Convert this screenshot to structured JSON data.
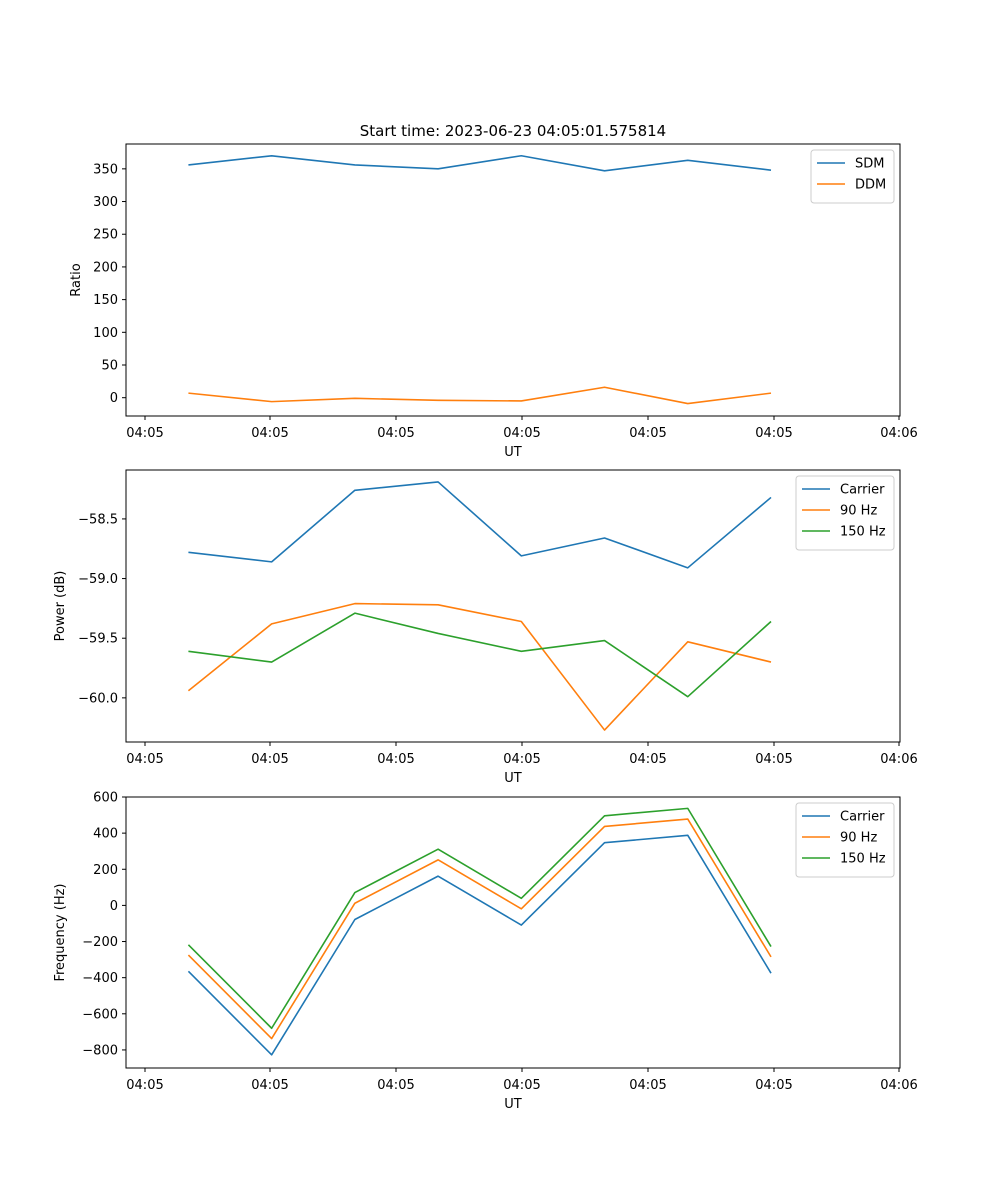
{
  "figure": {
    "title": "Start time: 2023-06-23 04:05:01.575814"
  },
  "chart_data": [
    {
      "type": "line",
      "title": "Start time: 2023-06-23 04:05:01.575814",
      "xlabel": "UT",
      "ylabel": "Ratio",
      "x_ticks": [
        "04:05",
        "04:05",
        "04:05",
        "04:05",
        "04:05",
        "04:05",
        "04:06"
      ],
      "x_points": [
        1,
        2,
        3,
        4,
        5,
        6,
        7,
        8
      ],
      "xlim": [
        0.25,
        9.55
      ],
      "ylim": [
        -28,
        388
      ],
      "y_ticks": [
        0,
        50,
        100,
        150,
        200,
        250,
        300,
        350
      ],
      "legend": "top-right",
      "grid": false,
      "series": [
        {
          "name": "SDM",
          "color": "#1f77b4",
          "values": [
            356,
            370,
            356,
            350,
            370,
            347,
            363,
            348
          ]
        },
        {
          "name": "DDM",
          "color": "#ff7f0e",
          "values": [
            7,
            -6,
            -1,
            -4,
            -5,
            16,
            -9,
            7
          ]
        }
      ]
    },
    {
      "type": "line",
      "xlabel": "UT",
      "ylabel": "Power (dB)",
      "x_ticks": [
        "04:05",
        "04:05",
        "04:05",
        "04:05",
        "04:05",
        "04:05",
        "04:06"
      ],
      "x_points": [
        1,
        2,
        3,
        4,
        5,
        6,
        7,
        8
      ],
      "xlim": [
        0.25,
        9.55
      ],
      "ylim": [
        -60.37,
        -58.09
      ],
      "y_ticks": [
        -60.0,
        -59.5,
        -59.0,
        -58.5
      ],
      "y_tick_labels": [
        "−60.0",
        "−59.5",
        "−59.0",
        "−58.5"
      ],
      "legend": "top-right",
      "grid": false,
      "series": [
        {
          "name": "Carrier",
          "color": "#1f77b4",
          "values": [
            -58.78,
            -58.86,
            -58.26,
            -58.19,
            -58.81,
            -58.66,
            -58.91,
            -58.32
          ]
        },
        {
          "name": "90 Hz",
          "color": "#ff7f0e",
          "values": [
            -59.94,
            -59.38,
            -59.21,
            -59.22,
            -59.36,
            -60.27,
            -59.53,
            -59.7
          ]
        },
        {
          "name": "150 Hz",
          "color": "#2ca02c",
          "values": [
            -59.61,
            -59.7,
            -59.29,
            -59.46,
            -59.61,
            -59.52,
            -59.99,
            -59.36
          ]
        }
      ]
    },
    {
      "type": "line",
      "xlabel": "UT",
      "ylabel": "Frequency (Hz)",
      "x_ticks": [
        "04:05",
        "04:05",
        "04:05",
        "04:05",
        "04:05",
        "04:05",
        "04:06"
      ],
      "x_points": [
        1,
        2,
        3,
        4,
        5,
        6,
        7,
        8
      ],
      "xlim": [
        0.25,
        9.55
      ],
      "ylim": [
        -900,
        600
      ],
      "y_ticks": [
        -800,
        -600,
        -400,
        -200,
        0,
        200,
        400,
        600
      ],
      "y_tick_labels": [
        "−800",
        "−600",
        "−400",
        "−200",
        "0",
        "200",
        "400",
        "600"
      ],
      "legend": "top-right",
      "grid": false,
      "series": [
        {
          "name": "Carrier",
          "color": "#1f77b4",
          "values": [
            -365,
            -827,
            -78,
            162,
            -109,
            347,
            388,
            -375
          ]
        },
        {
          "name": "90 Hz",
          "color": "#ff7f0e",
          "values": [
            -275,
            -737,
            12,
            252,
            -19,
            437,
            478,
            -285
          ]
        },
        {
          "name": "150 Hz",
          "color": "#2ca02c",
          "values": [
            -218,
            -680,
            71,
            311,
            39,
            496,
            537,
            -228
          ]
        }
      ]
    }
  ]
}
